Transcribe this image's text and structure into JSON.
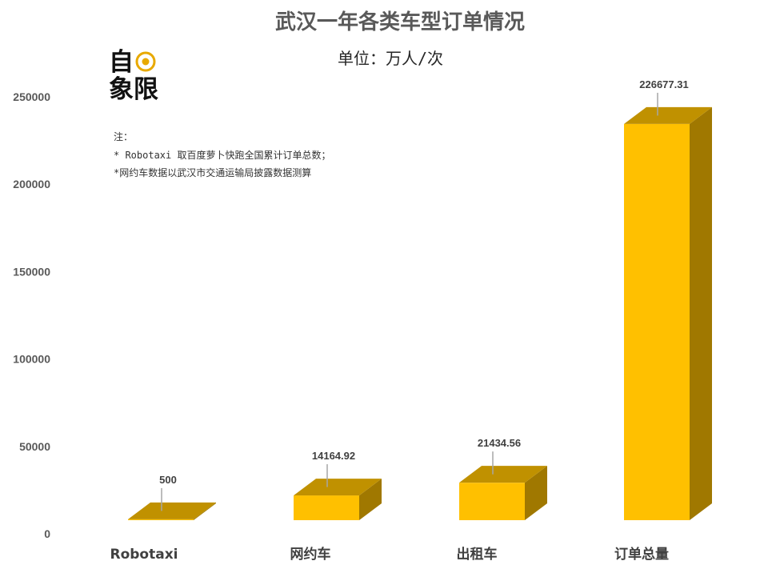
{
  "chart_data": {
    "type": "bar",
    "title": "武汉一年各类车型订单情况",
    "subtitle": "单位：万人/次",
    "categories": [
      "Robotaxi",
      "网约车",
      "出租车",
      "订单总量"
    ],
    "values": [
      500,
      14164.92,
      21434.56,
      226677.31
    ],
    "data_labels": [
      "500",
      "14164.92",
      "21434.56",
      "226677.31"
    ],
    "y_ticks": [
      "0",
      "50000",
      "100000",
      "150000",
      "200000",
      "250000"
    ],
    "ylim": [
      0,
      250000
    ],
    "grid": false,
    "legend": "none",
    "style": "3d-column"
  },
  "notes": [
    "注：",
    "* Robotaxi 取百度萝卜快跑全国累计订单总数；",
    "*网约车数据以武汉市交通运输局披露数据测算"
  ],
  "logo": {
    "line1": "自",
    "line2": "象限",
    "icon": "eye-icon"
  },
  "colors": {
    "front": "#FFC000",
    "top": "#C09100",
    "side": "#A07800",
    "leader": "#A6A6A6"
  }
}
